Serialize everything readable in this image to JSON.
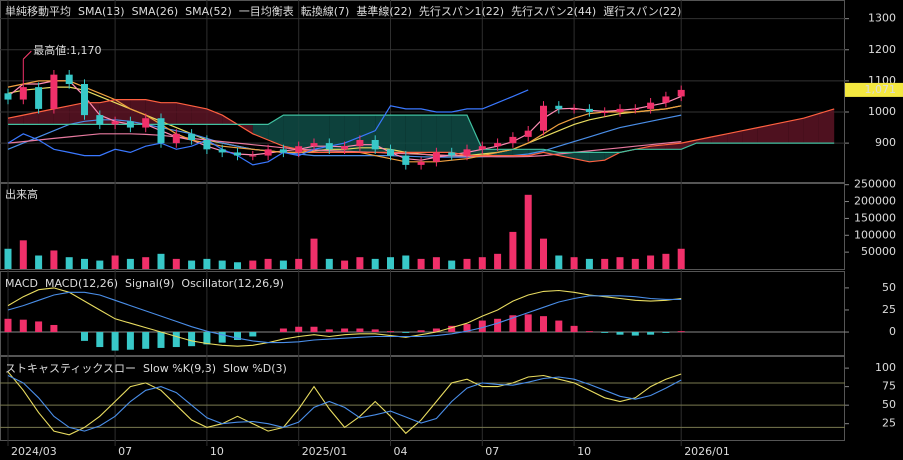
{
  "x_axis": {
    "categories": [
      "2024/03",
      null,
      null,
      null,
      null,
      null,
      null,
      "07",
      null,
      null,
      null,
      null,
      null,
      "10",
      null,
      null,
      null,
      null,
      null,
      "2025/01",
      null,
      null,
      null,
      null,
      null,
      "04",
      null,
      null,
      null,
      null,
      null,
      "07",
      null,
      null,
      null,
      null,
      null,
      "10",
      null,
      null,
      null,
      null,
      null,
      null,
      "2026/01",
      null,
      null,
      null,
      null,
      null,
      null,
      null,
      null,
      null,
      null
    ]
  },
  "chart_data": [
    {
      "type": "candlestick",
      "sma_title": "単純移動平均",
      "ichimoku_title": "一目均衡表",
      "ylim": [
        775,
        1360
      ],
      "yticks": [
        900,
        1000,
        1100,
        1200,
        1300
      ],
      "grid": true,
      "up_color": "#f0306a",
      "down_color": "#38c8c8",
      "cloud_up_color": "#5c1424",
      "cloud_down_color": "#0f4c46",
      "ohlc": {
        "open": [
          1060,
          1040,
          1080,
          1010,
          1120,
          1090,
          990,
          960,
          970,
          950,
          980,
          900,
          930,
          910,
          880,
          870,
          860,
          860,
          880,
          870,
          890,
          900,
          880,
          890,
          910,
          880,
          860,
          830,
          840,
          870,
          860,
          880,
          890,
          900,
          920,
          940,
          1020,
          1010,
          1010,
          1000,
          1000,
          1010,
          1010,
          1030,
          1050
        ],
        "high": [
          1075,
          1170,
          1095,
          1135,
          1135,
          1105,
          1005,
          985,
          985,
          995,
          995,
          945,
          945,
          925,
          895,
          885,
          875,
          895,
          895,
          905,
          915,
          915,
          905,
          925,
          925,
          895,
          875,
          855,
          885,
          885,
          895,
          905,
          915,
          935,
          955,
          1035,
          1035,
          1025,
          1025,
          1015,
          1025,
          1025,
          1045,
          1065,
          1085
        ],
        "low": [
          1025,
          1025,
          995,
          995,
          1075,
          975,
          945,
          945,
          935,
          935,
          885,
          885,
          895,
          865,
          855,
          845,
          845,
          845,
          855,
          855,
          875,
          865,
          865,
          875,
          865,
          845,
          815,
          815,
          825,
          845,
          845,
          865,
          875,
          885,
          905,
          925,
          995,
          995,
          985,
          985,
          985,
          995,
          995,
          1015,
          1035
        ],
        "close": [
          1040,
          1080,
          1010,
          1120,
          1090,
          990,
          960,
          970,
          950,
          980,
          900,
          930,
          910,
          880,
          870,
          860,
          860,
          880,
          870,
          890,
          900,
          880,
          890,
          910,
          880,
          860,
          830,
          840,
          870,
          860,
          880,
          890,
          900,
          920,
          940,
          1020,
          1010,
          1010,
          1000,
          1000,
          1010,
          1010,
          1030,
          1050,
          1071
        ]
      },
      "series": [
        {
          "name": "SMA(13)",
          "color": "#e8dc60",
          "values": [
            1060,
            1070,
            1075,
            1080,
            1080,
            1070,
            1050,
            1030,
            1010,
            990,
            970,
            950,
            930,
            910,
            900,
            890,
            880,
            875,
            870,
            870,
            875,
            880,
            880,
            885,
            885,
            880,
            870,
            865,
            860,
            860,
            860,
            865,
            870,
            880,
            900,
            920,
            940,
            960,
            975,
            985,
            995,
            1000,
            1005,
            1010,
            1020
          ]
        },
        {
          "name": "SMA(26)",
          "color": "#4a8ee8",
          "values": [
            880,
            900,
            920,
            940,
            960,
            970,
            975,
            975,
            970,
            960,
            950,
            940,
            930,
            915,
            900,
            890,
            880,
            875,
            870,
            865,
            860,
            860,
            860,
            860,
            860,
            860,
            858,
            856,
            855,
            855,
            855,
            856,
            858,
            860,
            865,
            875,
            890,
            905,
            920,
            935,
            950,
            960,
            970,
            980,
            990
          ]
        },
        {
          "name": "SMA(52)",
          "color": "#e87aa0",
          "values": [
            900,
            905,
            910,
            915,
            920,
            925,
            930,
            930,
            930,
            928,
            925,
            920,
            915,
            910,
            905,
            900,
            895,
            890,
            885,
            880,
            878,
            876,
            874,
            872,
            870,
            868,
            866,
            864,
            862,
            860,
            858,
            857,
            856,
            856,
            857,
            860,
            865,
            870,
            875,
            880,
            885,
            890,
            895,
            900,
            905
          ]
        },
        {
          "name": "転換線(7)",
          "color": "#ff8cb4",
          "values": [
            1050,
            1090,
            1090,
            1100,
            1100,
            1050,
            990,
            970,
            960,
            960,
            940,
            920,
            910,
            890,
            875,
            865,
            862,
            868,
            875,
            880,
            890,
            890,
            888,
            895,
            895,
            870,
            850,
            845,
            855,
            862,
            870,
            880,
            890,
            905,
            930,
            980,
            1010,
            1012,
            1005,
            1002,
            1005,
            1010,
            1020,
            1030,
            1050
          ]
        },
        {
          "name": "基準線(22)",
          "color": "#f0a040",
          "values": [
            1080,
            1090,
            1100,
            1100,
            1100,
            1080,
            1060,
            1040,
            1010,
            990,
            960,
            930,
            910,
            900,
            890,
            885,
            880,
            875,
            870,
            870,
            870,
            870,
            870,
            870,
            860,
            850,
            840,
            840,
            840,
            845,
            850,
            860,
            870,
            880,
            900,
            930,
            960,
            980,
            995,
            1000,
            1000,
            1000,
            1005,
            1010,
            1020
          ]
        },
        {
          "name": "先行スパン1(22)",
          "color": "#ff6040",
          "span": 1,
          "values": [
            980,
            990,
            1000,
            1010,
            1020,
            1030,
            1030,
            1040,
            1040,
            1040,
            1030,
            1030,
            1020,
            1010,
            990,
            960,
            930,
            910,
            890,
            880,
            870,
            870,
            870,
            870,
            870,
            870,
            870,
            870,
            870,
            870,
            860,
            860,
            860,
            860,
            860,
            870,
            860,
            850,
            840,
            845,
            870,
            880,
            890,
            895,
            900,
            910,
            920,
            930,
            940,
            950,
            960,
            970,
            980,
            995,
            1010
          ]
        },
        {
          "name": "先行スパン2(44)",
          "color": "#40c0a0",
          "span": 2,
          "values": [
            960,
            960,
            960,
            960,
            960,
            960,
            960,
            960,
            960,
            960,
            960,
            960,
            960,
            960,
            960,
            960,
            960,
            960,
            990,
            990,
            990,
            990,
            990,
            990,
            990,
            990,
            990,
            990,
            990,
            990,
            990,
            880,
            880,
            880,
            880,
            880,
            870,
            870,
            870,
            870,
            870,
            880,
            880,
            880,
            880,
            900,
            900,
            900,
            900,
            900,
            900,
            900,
            900,
            900,
            900
          ]
        },
        {
          "name": "遅行スパン(22)",
          "color": "#3a78ff",
          "values": [
            900,
            930,
            910,
            880,
            870,
            860,
            860,
            880,
            870,
            890,
            900,
            880,
            890,
            910,
            880,
            860,
            830,
            840,
            870,
            860,
            880,
            890,
            900,
            920,
            940,
            1020,
            1010,
            1010,
            1000,
            1000,
            1010,
            1010,
            1030,
            1050,
            1071,
            null,
            null,
            null,
            null,
            null,
            null,
            null,
            null,
            null,
            null
          ]
        }
      ],
      "annotation": {
        "text": "最高値:1,170",
        "value": 1170,
        "color": "#ff4070"
      },
      "price_label": {
        "text": "1,071",
        "value": 1071,
        "color": "#f4e840"
      }
    },
    {
      "type": "bar",
      "title": "出来高",
      "ylim": [
        0,
        255000
      ],
      "yticks": [
        50000,
        100000,
        150000,
        200000,
        250000
      ],
      "up_color": "#f0306a",
      "down_color": "#38c8c8",
      "values": [
        60000,
        85000,
        40000,
        55000,
        35000,
        30000,
        25000,
        40000,
        30000,
        35000,
        45000,
        30000,
        25000,
        30000,
        25000,
        20000,
        25000,
        30000,
        25000,
        30000,
        90000,
        30000,
        25000,
        35000,
        30000,
        35000,
        40000,
        30000,
        35000,
        25000,
        30000,
        35000,
        45000,
        110000,
        220000,
        90000,
        40000,
        35000,
        30000,
        30000,
        35000,
        30000,
        40000,
        45000,
        60000
      ]
    },
    {
      "type": "combo",
      "title": "MACD",
      "ylim": [
        -26,
        68
      ],
      "yticks": [
        0,
        25,
        50
      ],
      "zero_line": true,
      "series": [
        {
          "name": "MACD(12,26)",
          "color": "#e8dc60",
          "kind": "line",
          "values": [
            30,
            40,
            48,
            50,
            45,
            35,
            25,
            15,
            10,
            5,
            0,
            -5,
            -10,
            -13,
            -15,
            -16,
            -15,
            -12,
            -8,
            -5,
            -3,
            -5,
            -3,
            -2,
            -2,
            -4,
            -6,
            -3,
            0,
            5,
            10,
            18,
            25,
            35,
            42,
            46,
            47,
            45,
            42,
            40,
            38,
            36,
            35,
            36,
            38
          ]
        },
        {
          "name": "Signal(9)",
          "color": "#4a8ee8",
          "kind": "line",
          "values": [
            25,
            30,
            36,
            42,
            45,
            45,
            42,
            36,
            30,
            24,
            18,
            12,
            6,
            1,
            -3,
            -7,
            -10,
            -12,
            -12,
            -11,
            -9,
            -8,
            -7,
            -6,
            -5,
            -5,
            -5,
            -5,
            -4,
            -2,
            1,
            5,
            10,
            16,
            22,
            28,
            34,
            38,
            41,
            41,
            41,
            40,
            38,
            37,
            37
          ]
        },
        {
          "name": "Oscillator(12,26,9)",
          "color": "#f0306a",
          "negative_color": "#38c8c8",
          "kind": "bar",
          "values": [
            15,
            14,
            12,
            8,
            0,
            -10,
            -17,
            -21,
            -20,
            -19,
            -18,
            -17,
            -16,
            -14,
            -12,
            -9,
            -5,
            0,
            4,
            6,
            6,
            3,
            4,
            4,
            3,
            1,
            -1,
            2,
            4,
            7,
            9,
            13,
            15,
            19,
            20,
            18,
            13,
            7,
            1,
            -1,
            -3,
            -4,
            -3,
            -1,
            1
          ]
        }
      ]
    },
    {
      "type": "line",
      "title": "ストキャスティックスロー",
      "ylim": [
        3,
        115
      ],
      "yticks": [
        25,
        50,
        75,
        100
      ],
      "reference_lines": [
        80,
        50,
        20
      ],
      "series": [
        {
          "name": "Slow %K(9,3)",
          "color": "#e8dc60",
          "values": [
            95,
            70,
            40,
            15,
            10,
            20,
            35,
            55,
            75,
            80,
            70,
            50,
            30,
            20,
            25,
            35,
            25,
            15,
            20,
            45,
            75,
            45,
            20,
            35,
            55,
            35,
            12,
            30,
            55,
            80,
            85,
            75,
            75,
            80,
            88,
            90,
            85,
            80,
            70,
            60,
            55,
            60,
            75,
            85,
            92
          ]
        },
        {
          "name": "Slow %D(3)",
          "color": "#4a8ee8",
          "values": [
            90,
            80,
            60,
            35,
            20,
            15,
            22,
            35,
            55,
            70,
            75,
            67,
            50,
            33,
            25,
            27,
            28,
            25,
            20,
            27,
            47,
            55,
            47,
            33,
            37,
            42,
            34,
            26,
            32,
            55,
            73,
            80,
            78,
            77,
            81,
            86,
            88,
            85,
            78,
            70,
            62,
            58,
            63,
            73,
            84
          ]
        }
      ]
    }
  ]
}
